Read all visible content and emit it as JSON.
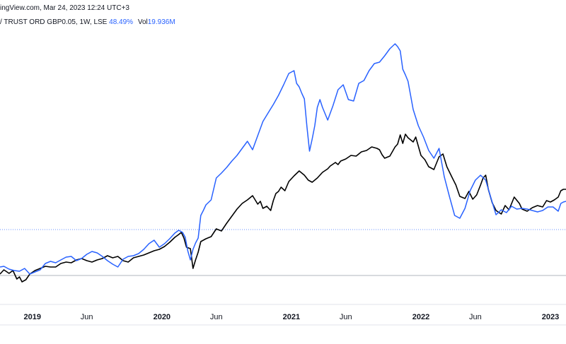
{
  "header": {
    "text": "ingView.com, Mar 24, 2023 12:24 UTC+3"
  },
  "legend": {
    "symbol": "/ TRUST ORD GBP0.05, 1W, LSE",
    "change": "48.49%",
    "vol_label": "Vol",
    "vol_value": "19.936M"
  },
  "chart_data": {
    "type": "line",
    "xlim": [
      2018.75,
      2023.12
    ],
    "x_ticks": [
      {
        "x": 2019.0,
        "label": "2019",
        "year": true
      },
      {
        "x": 2019.42,
        "label": "Jun",
        "year": false
      },
      {
        "x": 2020.0,
        "label": "2020",
        "year": true
      },
      {
        "x": 2020.42,
        "label": "Jun",
        "year": false
      },
      {
        "x": 2021.0,
        "label": "2021",
        "year": true
      },
      {
        "x": 2021.42,
        "label": "Jun",
        "year": false
      },
      {
        "x": 2022.0,
        "label": "2022",
        "year": true
      },
      {
        "x": 2022.42,
        "label": "Jun",
        "year": false
      },
      {
        "x": 2023.0,
        "label": "2023",
        "year": true
      }
    ],
    "colors": {
      "main": "#000000",
      "compare": "#2962ff",
      "grid": "#e0e3eb"
    },
    "series": [
      {
        "color": "#000000",
        "points": [
          [
            2018.75,
            388
          ],
          [
            2018.78,
            382
          ],
          [
            2018.82,
            387
          ],
          [
            2018.85,
            383
          ],
          [
            2018.88,
            395
          ],
          [
            2018.9,
            392
          ],
          [
            2018.92,
            399
          ],
          [
            2018.95,
            396
          ],
          [
            2018.98,
            388
          ],
          [
            2019.02,
            383
          ],
          [
            2019.06,
            380
          ],
          [
            2019.1,
            377
          ],
          [
            2019.14,
            378
          ],
          [
            2019.18,
            378
          ],
          [
            2019.22,
            373
          ],
          [
            2019.26,
            371
          ],
          [
            2019.3,
            372
          ],
          [
            2019.34,
            368
          ],
          [
            2019.38,
            366
          ],
          [
            2019.42,
            369
          ],
          [
            2019.46,
            371
          ],
          [
            2019.5,
            368
          ],
          [
            2019.54,
            366
          ],
          [
            2019.58,
            362
          ],
          [
            2019.62,
            365
          ],
          [
            2019.66,
            363
          ],
          [
            2019.7,
            369
          ],
          [
            2019.74,
            371
          ],
          [
            2019.78,
            365
          ],
          [
            2019.82,
            363
          ],
          [
            2019.86,
            361
          ],
          [
            2019.9,
            358
          ],
          [
            2019.94,
            355
          ],
          [
            2019.98,
            353
          ],
          [
            2020.02,
            349
          ],
          [
            2020.06,
            343
          ],
          [
            2020.1,
            336
          ],
          [
            2020.13,
            332
          ],
          [
            2020.15,
            329
          ],
          [
            2020.17,
            337
          ],
          [
            2020.19,
            350
          ],
          [
            2020.22,
            352
          ],
          [
            2020.24,
            380
          ],
          [
            2020.26,
            368
          ],
          [
            2020.28,
            357
          ],
          [
            2020.3,
            342
          ],
          [
            2020.34,
            338
          ],
          [
            2020.38,
            335
          ],
          [
            2020.42,
            324
          ],
          [
            2020.46,
            327
          ],
          [
            2020.5,
            316
          ],
          [
            2020.54,
            306
          ],
          [
            2020.58,
            296
          ],
          [
            2020.62,
            288
          ],
          [
            2020.66,
            283
          ],
          [
            2020.7,
            277
          ],
          [
            2020.74,
            289
          ],
          [
            2020.76,
            285
          ],
          [
            2020.78,
            295
          ],
          [
            2020.81,
            292
          ],
          [
            2020.84,
            298
          ],
          [
            2020.86,
            284
          ],
          [
            2020.88,
            274
          ],
          [
            2020.9,
            271
          ],
          [
            2020.92,
            265
          ],
          [
            2020.95,
            270
          ],
          [
            2020.98,
            257
          ],
          [
            2021.02,
            249
          ],
          [
            2021.06,
            242
          ],
          [
            2021.1,
            248
          ],
          [
            2021.13,
            255
          ],
          [
            2021.16,
            258
          ],
          [
            2021.2,
            252
          ],
          [
            2021.24,
            244
          ],
          [
            2021.28,
            239
          ],
          [
            2021.3,
            235
          ],
          [
            2021.34,
            230
          ],
          [
            2021.36,
            233
          ],
          [
            2021.38,
            228
          ],
          [
            2021.42,
            225
          ],
          [
            2021.46,
            220
          ],
          [
            2021.5,
            221
          ],
          [
            2021.54,
            215
          ],
          [
            2021.58,
            213
          ],
          [
            2021.62,
            208
          ],
          [
            2021.66,
            210
          ],
          [
            2021.68,
            212
          ],
          [
            2021.7,
            219
          ],
          [
            2021.72,
            224
          ],
          [
            2021.76,
            221
          ],
          [
            2021.8,
            208
          ],
          [
            2021.82,
            204
          ],
          [
            2021.84,
            191
          ],
          [
            2021.86,
            203
          ],
          [
            2021.88,
            190
          ],
          [
            2021.9,
            195
          ],
          [
            2021.94,
            201
          ],
          [
            2021.96,
            194
          ],
          [
            2022.0,
            220
          ],
          [
            2022.03,
            226
          ],
          [
            2022.06,
            236
          ],
          [
            2022.1,
            240
          ],
          [
            2022.14,
            222
          ],
          [
            2022.17,
            218
          ],
          [
            2022.2,
            236
          ],
          [
            2022.24,
            251
          ],
          [
            2022.27,
            262
          ],
          [
            2022.3,
            278
          ],
          [
            2022.34,
            281
          ],
          [
            2022.37,
            271
          ],
          [
            2022.4,
            282
          ],
          [
            2022.43,
            276
          ],
          [
            2022.46,
            262
          ],
          [
            2022.48,
            252
          ],
          [
            2022.5,
            248
          ],
          [
            2022.52,
            268
          ],
          [
            2022.55,
            287
          ],
          [
            2022.58,
            298
          ],
          [
            2022.62,
            303
          ],
          [
            2022.65,
            291
          ],
          [
            2022.68,
            297
          ],
          [
            2022.72,
            279
          ],
          [
            2022.76,
            288
          ],
          [
            2022.78,
            296
          ],
          [
            2022.82,
            299
          ],
          [
            2022.86,
            294
          ],
          [
            2022.9,
            291
          ],
          [
            2022.94,
            293
          ],
          [
            2022.97,
            284
          ],
          [
            2023.0,
            286
          ],
          [
            2023.03,
            283
          ],
          [
            2023.06,
            279
          ],
          [
            2023.08,
            270
          ],
          [
            2023.1,
            268
          ],
          [
            2023.12,
            268
          ]
        ]
      },
      {
        "color": "#2962ff",
        "points": [
          [
            2018.75,
            378
          ],
          [
            2018.78,
            377
          ],
          [
            2018.82,
            381
          ],
          [
            2018.86,
            383
          ],
          [
            2018.9,
            384
          ],
          [
            2018.94,
            380
          ],
          [
            2018.98,
            388
          ],
          [
            2019.02,
            385
          ],
          [
            2019.06,
            382
          ],
          [
            2019.1,
            373
          ],
          [
            2019.14,
            370
          ],
          [
            2019.18,
            372
          ],
          [
            2019.22,
            368
          ],
          [
            2019.26,
            364
          ],
          [
            2019.3,
            363
          ],
          [
            2019.34,
            369
          ],
          [
            2019.38,
            366
          ],
          [
            2019.42,
            360
          ],
          [
            2019.46,
            356
          ],
          [
            2019.5,
            358
          ],
          [
            2019.54,
            363
          ],
          [
            2019.58,
            369
          ],
          [
            2019.62,
            374
          ],
          [
            2019.66,
            378
          ],
          [
            2019.7,
            367
          ],
          [
            2019.74,
            363
          ],
          [
            2019.78,
            362
          ],
          [
            2019.82,
            359
          ],
          [
            2019.86,
            353
          ],
          [
            2019.9,
            345
          ],
          [
            2019.94,
            340
          ],
          [
            2019.98,
            350
          ],
          [
            2020.02,
            345
          ],
          [
            2020.06,
            338
          ],
          [
            2020.1,
            330
          ],
          [
            2020.13,
            326
          ],
          [
            2020.16,
            329
          ],
          [
            2020.18,
            336
          ],
          [
            2020.2,
            355
          ],
          [
            2020.22,
            368
          ],
          [
            2020.24,
            353
          ],
          [
            2020.26,
            344
          ],
          [
            2020.28,
            337
          ],
          [
            2020.3,
            305
          ],
          [
            2020.32,
            298
          ],
          [
            2020.34,
            290
          ],
          [
            2020.38,
            283
          ],
          [
            2020.42,
            252
          ],
          [
            2020.46,
            245
          ],
          [
            2020.5,
            237
          ],
          [
            2020.54,
            228
          ],
          [
            2020.58,
            220
          ],
          [
            2020.62,
            210
          ],
          [
            2020.66,
            200
          ],
          [
            2020.7,
            212
          ],
          [
            2020.74,
            192
          ],
          [
            2020.78,
            172
          ],
          [
            2020.82,
            160
          ],
          [
            2020.86,
            148
          ],
          [
            2020.9,
            135
          ],
          [
            2020.94,
            120
          ],
          [
            2020.98,
            104
          ],
          [
            2021.02,
            100
          ],
          [
            2021.04,
            118
          ],
          [
            2021.06,
            123
          ],
          [
            2021.08,
            132
          ],
          [
            2021.1,
            140
          ],
          [
            2021.12,
            180
          ],
          [
            2021.14,
            214
          ],
          [
            2021.16,
            197
          ],
          [
            2021.18,
            178
          ],
          [
            2021.2,
            152
          ],
          [
            2021.22,
            141
          ],
          [
            2021.24,
            152
          ],
          [
            2021.28,
            170
          ],
          [
            2021.32,
            150
          ],
          [
            2021.36,
            127
          ],
          [
            2021.4,
            120
          ],
          [
            2021.44,
            141
          ],
          [
            2021.48,
            143
          ],
          [
            2021.52,
            118
          ],
          [
            2021.56,
            114
          ],
          [
            2021.6,
            100
          ],
          [
            2021.64,
            90
          ],
          [
            2021.68,
            88
          ],
          [
            2021.72,
            79
          ],
          [
            2021.76,
            69
          ],
          [
            2021.8,
            62
          ],
          [
            2021.82,
            66
          ],
          [
            2021.84,
            72
          ],
          [
            2021.86,
            98
          ],
          [
            2021.88,
            106
          ],
          [
            2021.9,
            115
          ],
          [
            2021.94,
            155
          ],
          [
            2021.98,
            178
          ],
          [
            2022.02,
            194
          ],
          [
            2022.06,
            213
          ],
          [
            2022.1,
            224
          ],
          [
            2022.14,
            210
          ],
          [
            2022.18,
            250
          ],
          [
            2022.22,
            278
          ],
          [
            2022.26,
            305
          ],
          [
            2022.3,
            309
          ],
          [
            2022.34,
            295
          ],
          [
            2022.38,
            270
          ],
          [
            2022.42,
            255
          ],
          [
            2022.46,
            248
          ],
          [
            2022.5,
            255
          ],
          [
            2022.54,
            280
          ],
          [
            2022.58,
            304
          ],
          [
            2022.62,
            297
          ],
          [
            2022.66,
            301
          ],
          [
            2022.7,
            292
          ],
          [
            2022.74,
            296
          ],
          [
            2022.78,
            295
          ],
          [
            2022.82,
            296
          ],
          [
            2022.86,
            298
          ],
          [
            2022.9,
            300
          ],
          [
            2022.94,
            298
          ],
          [
            2022.98,
            293
          ],
          [
            2023.02,
            293
          ],
          [
            2023.06,
            299
          ],
          [
            2023.08,
            288
          ],
          [
            2023.1,
            286
          ],
          [
            2023.12,
            285
          ]
        ]
      }
    ],
    "baseline": 325
  }
}
